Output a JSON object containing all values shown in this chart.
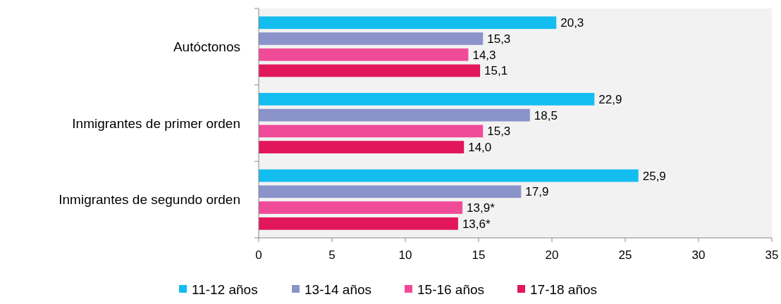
{
  "chart_data": {
    "type": "bar",
    "orientation": "horizontal",
    "categories": [
      "Autóctonos",
      "Inmigrantes de primer orden",
      "Inmigrantes de segundo orden"
    ],
    "series": [
      {
        "name": "11-12 años",
        "color": "#14bdef",
        "values": [
          20.3,
          22.9,
          25.9
        ],
        "value_labels": [
          "20,3",
          "22,9",
          "25,9"
        ]
      },
      {
        "name": "13-14 años",
        "color": "#8b93cb",
        "values": [
          15.3,
          18.5,
          17.9
        ],
        "value_labels": [
          "15,3",
          "18,5",
          "17,9"
        ]
      },
      {
        "name": "15-16 años",
        "color": "#f04b98",
        "values": [
          14.3,
          15.3,
          13.9
        ],
        "value_labels": [
          "14,3",
          "15,3",
          "13,9*"
        ]
      },
      {
        "name": "17-18 años",
        "color": "#e2165b",
        "values": [
          15.1,
          14.0,
          13.6
        ],
        "value_labels": [
          "15,1",
          "14,0",
          "13,6*"
        ]
      }
    ],
    "xlim": [
      0,
      35
    ],
    "xticks": [
      0,
      5,
      10,
      15,
      20,
      25,
      30,
      35
    ],
    "grid": false,
    "legend": "bottom"
  }
}
